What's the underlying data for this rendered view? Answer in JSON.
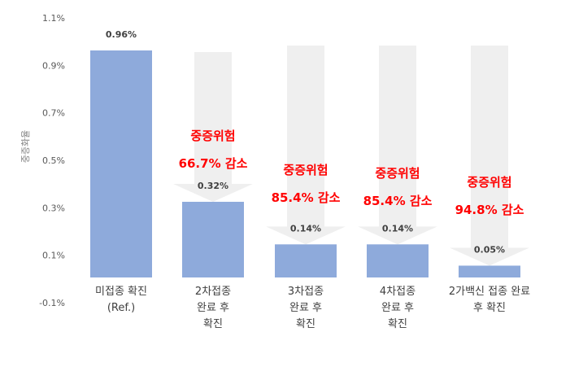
{
  "chart_data": {
    "type": "bar",
    "title": "",
    "xlabel": "",
    "ylabel": "중증화율",
    "ylim": [
      -0.1,
      1.1
    ],
    "yticks": [
      "1.1%",
      "0.9%",
      "0.7%",
      "0.5%",
      "0.3%",
      "0.1%",
      "-0.1%"
    ],
    "ytick_values": [
      1.1,
      0.9,
      0.7,
      0.5,
      0.3,
      0.1,
      -0.1
    ],
    "categories": [
      [
        "미접종 확진",
        "(Ref.)"
      ],
      [
        "2차접종",
        "완료 후",
        "확진"
      ],
      [
        "3차접종",
        "완료 후",
        "확진"
      ],
      [
        "4차접종",
        "완료 후",
        "확진"
      ],
      [
        "2가백신 접종 완료",
        "후 확진"
      ]
    ],
    "values": [
      0.96,
      0.32,
      0.14,
      0.14,
      0.05
    ],
    "value_labels": [
      "0.96%",
      "0.32%",
      "0.14%",
      "0.14%",
      "0.05%"
    ],
    "annotations": [
      null,
      [
        "중증위험",
        "66.7% 감소"
      ],
      [
        "중증위험",
        "85.4% 감소"
      ],
      [
        "중증위험",
        "85.4% 감소"
      ],
      [
        "중증위험",
        "94.8% 감소"
      ]
    ],
    "bar_color": "#8eaadb",
    "arrow_color": "#efefef",
    "annotation_color": "#ff0000",
    "grid": false
  }
}
